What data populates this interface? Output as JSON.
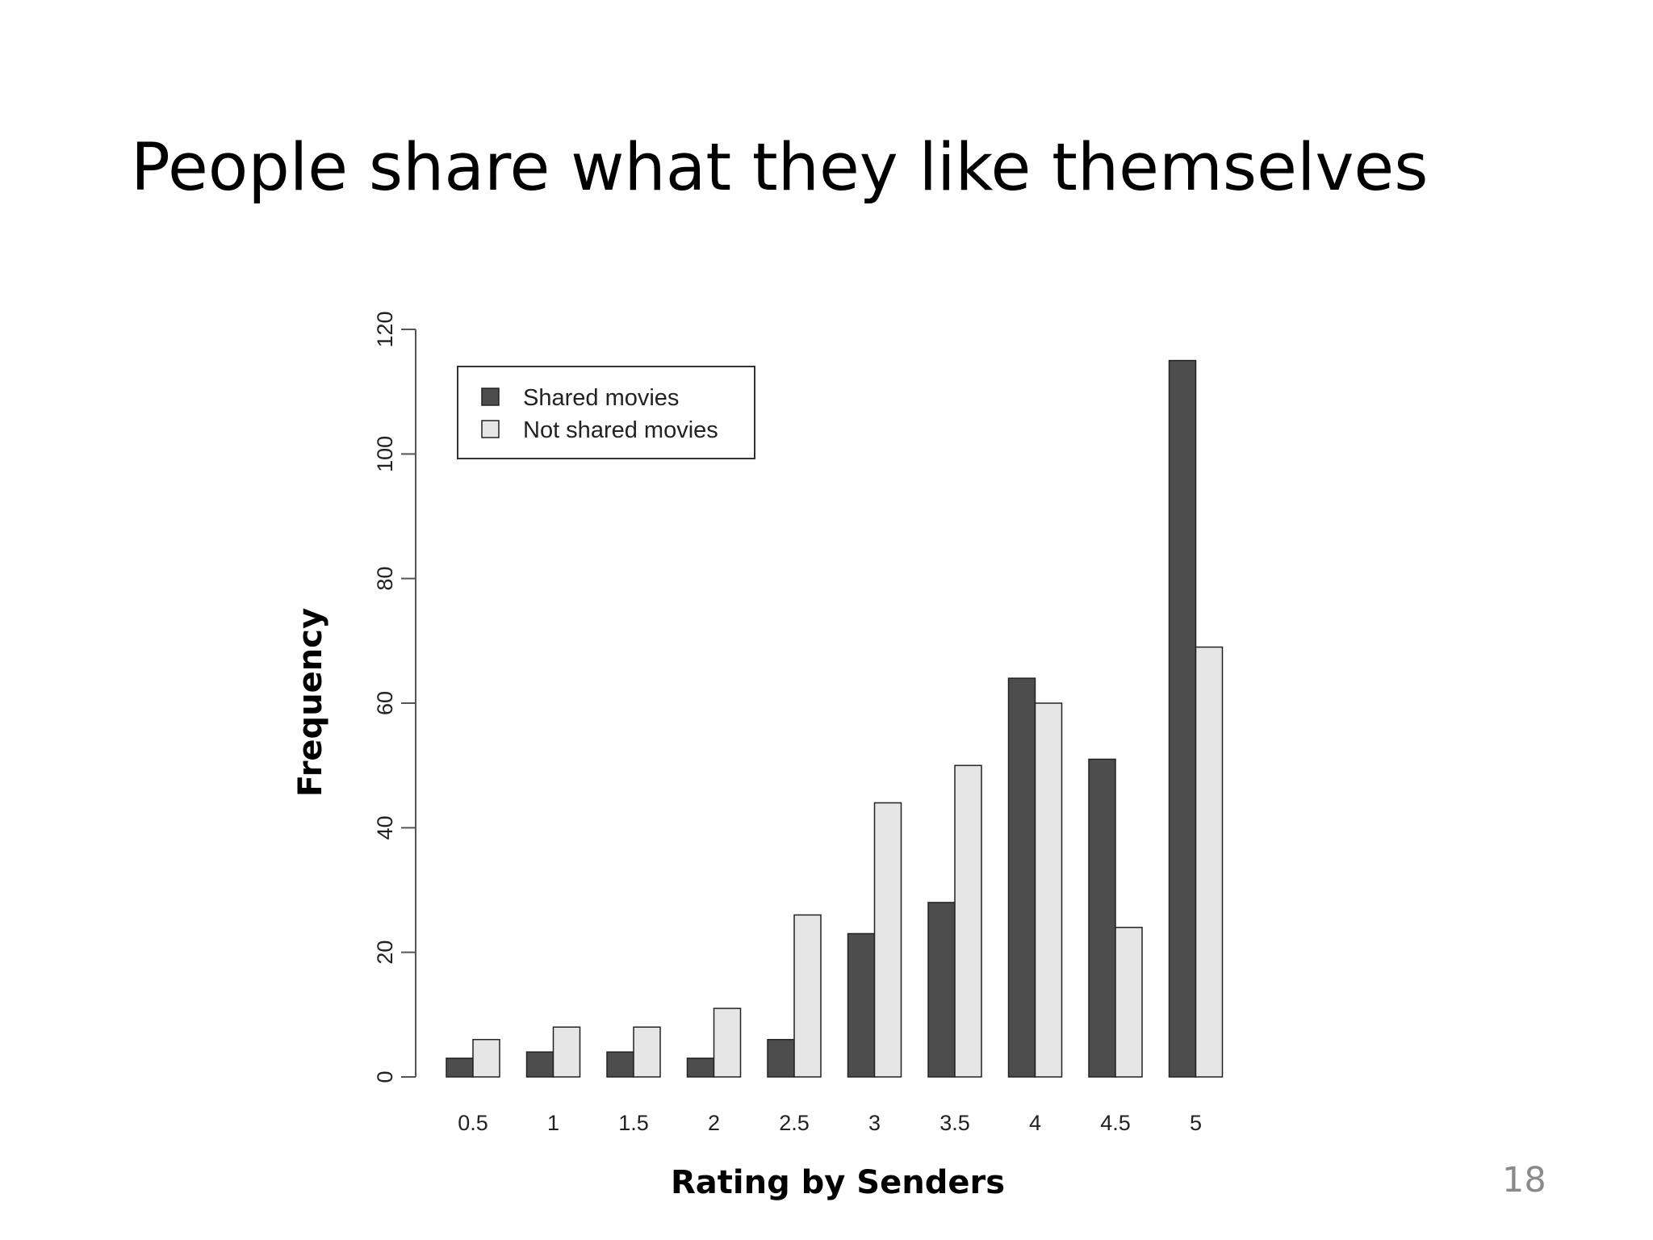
{
  "slide": {
    "title": "People share what they like themselves",
    "page_number": "18"
  },
  "chart_data": {
    "type": "bar",
    "categories": [
      "0.5",
      "1",
      "1.5",
      "2",
      "2.5",
      "3",
      "3.5",
      "4",
      "4.5",
      "5"
    ],
    "series": [
      {
        "name": "Shared movies",
        "values": [
          3,
          4,
          4,
          3,
          6,
          23,
          28,
          64,
          51,
          115
        ],
        "color": "#4d4d4d"
      },
      {
        "name": "Not shared movies",
        "values": [
          6,
          8,
          8,
          11,
          26,
          44,
          50,
          60,
          24,
          69
        ],
        "color": "#e6e6e6"
      }
    ],
    "xlabel": "Rating by Senders",
    "ylabel": "Frequency",
    "ylim": [
      0,
      120
    ],
    "yticks": [
      "0",
      "20",
      "40",
      "60",
      "80",
      "100",
      "120"
    ],
    "legend": "top-left",
    "grid": false
  }
}
